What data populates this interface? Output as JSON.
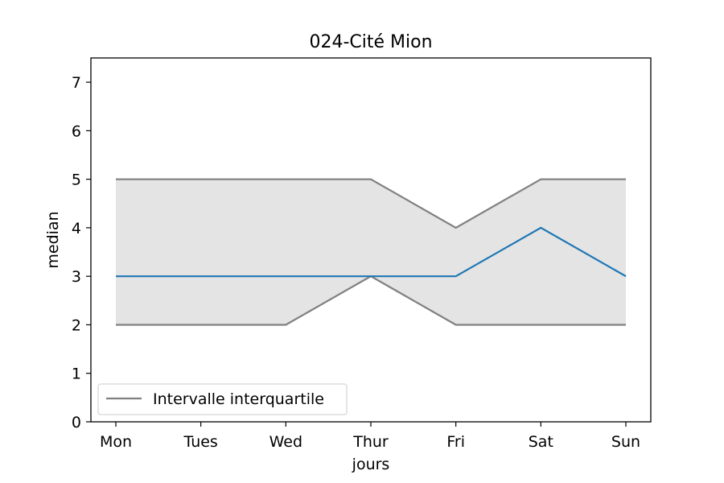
{
  "chart_data": {
    "type": "line",
    "title": "024-Cité Mion",
    "xlabel": "jours",
    "ylabel": "median",
    "categories": [
      "Mon",
      "Tues",
      "Wed",
      "Thur",
      "Fri",
      "Sat",
      "Sun"
    ],
    "ylim": [
      0,
      7.5
    ],
    "yticks": [
      0,
      1,
      2,
      3,
      4,
      5,
      6,
      7
    ],
    "series": [
      {
        "values": [
          3,
          3,
          3,
          3,
          3,
          4,
          3
        ],
        "color": "#1f77b4"
      },
      {
        "name": "Intervalle interquartile",
        "role": "upper-quartile",
        "values": [
          5,
          5,
          5,
          5,
          4,
          5,
          5
        ],
        "color": "#808080"
      },
      {
        "role": "lower-quartile",
        "values": [
          2,
          2,
          2,
          3,
          2,
          2,
          2
        ],
        "color": "#808080"
      }
    ],
    "band_fill": "#e4e4e4",
    "legend": {
      "position": "lower-left",
      "entries": [
        "Intervalle interquartile"
      ]
    },
    "grid": false
  }
}
